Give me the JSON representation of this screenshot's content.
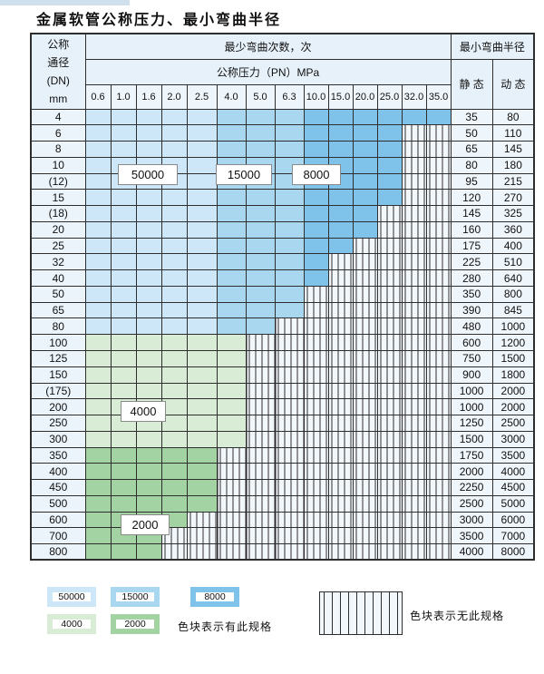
{
  "page": {
    "title": "金属软管公称压力、最小弯曲半径"
  },
  "table": {
    "header": {
      "dn": [
        "公称",
        "通径",
        "(DN)",
        "mm"
      ],
      "cycles": "最少弯曲次数，次",
      "pressure": "公称压力（PN）MPa",
      "radius": "最小弯曲半径",
      "static": "静 态",
      "dynamic": "动 态"
    },
    "pressure_columns": [
      "0.6",
      "1.0",
      "1.6",
      "2.0",
      "2.5",
      "4.0",
      "5.0",
      "6.3",
      "10.0",
      "15.0",
      "20.0",
      "25.0",
      "32.0",
      "35.0"
    ],
    "rows": [
      {
        "dn": "4",
        "static": "35",
        "dynamic": "80",
        "spec_through": 14,
        "zone": "blue"
      },
      {
        "dn": "6",
        "static": "50",
        "dynamic": "110",
        "spec_through": 12,
        "zone": "blue"
      },
      {
        "dn": "8",
        "static": "65",
        "dynamic": "145",
        "spec_through": 12,
        "zone": "blue"
      },
      {
        "dn": "10",
        "static": "80",
        "dynamic": "180",
        "spec_through": 12,
        "zone": "blue"
      },
      {
        "dn": "(12)",
        "static": "95",
        "dynamic": "215",
        "spec_through": 12,
        "zone": "blue"
      },
      {
        "dn": "15",
        "static": "120",
        "dynamic": "270",
        "spec_through": 12,
        "zone": "blue"
      },
      {
        "dn": "(18)",
        "static": "145",
        "dynamic": "325",
        "spec_through": 11,
        "zone": "blue"
      },
      {
        "dn": "20",
        "static": "160",
        "dynamic": "360",
        "spec_through": 11,
        "zone": "blue"
      },
      {
        "dn": "25",
        "static": "175",
        "dynamic": "400",
        "spec_through": 10,
        "zone": "blue"
      },
      {
        "dn": "32",
        "static": "225",
        "dynamic": "510",
        "spec_through": 9,
        "zone": "blue"
      },
      {
        "dn": "40",
        "static": "280",
        "dynamic": "640",
        "spec_through": 9,
        "zone": "blue"
      },
      {
        "dn": "50",
        "static": "350",
        "dynamic": "800",
        "spec_through": 8,
        "zone": "blue"
      },
      {
        "dn": "65",
        "static": "390",
        "dynamic": "845",
        "spec_through": 8,
        "zone": "blue"
      },
      {
        "dn": "80",
        "static": "480",
        "dynamic": "1000",
        "spec_through": 7,
        "zone": "blue"
      },
      {
        "dn": "100",
        "static": "600",
        "dynamic": "1200",
        "spec_through": 6,
        "zone": "green_light"
      },
      {
        "dn": "125",
        "static": "750",
        "dynamic": "1500",
        "spec_through": 6,
        "zone": "green_light"
      },
      {
        "dn": "150",
        "static": "900",
        "dynamic": "1800",
        "spec_through": 6,
        "zone": "green_light"
      },
      {
        "dn": "(175)",
        "static": "1000",
        "dynamic": "2000",
        "spec_through": 6,
        "zone": "green_light"
      },
      {
        "dn": "200",
        "static": "1000",
        "dynamic": "2000",
        "spec_through": 6,
        "zone": "green_light"
      },
      {
        "dn": "250",
        "static": "1250",
        "dynamic": "2500",
        "spec_through": 6,
        "zone": "green_light"
      },
      {
        "dn": "300",
        "static": "1500",
        "dynamic": "3000",
        "spec_through": 6,
        "zone": "green_light"
      },
      {
        "dn": "350",
        "static": "1750",
        "dynamic": "3500",
        "spec_through": 5,
        "zone": "green_mid"
      },
      {
        "dn": "400",
        "static": "2000",
        "dynamic": "4000",
        "spec_through": 5,
        "zone": "green_mid"
      },
      {
        "dn": "450",
        "static": "2250",
        "dynamic": "4500",
        "spec_through": 5,
        "zone": "green_mid"
      },
      {
        "dn": "500",
        "static": "2500",
        "dynamic": "5000",
        "spec_through": 5,
        "zone": "green_mid"
      },
      {
        "dn": "600",
        "static": "3000",
        "dynamic": "6000",
        "spec_through": 4,
        "zone": "green_mid"
      },
      {
        "dn": "700",
        "static": "3500",
        "dynamic": "7000",
        "spec_through": 3,
        "zone": "green_mid"
      },
      {
        "dn": "800",
        "static": "4000",
        "dynamic": "8000",
        "spec_through": 3,
        "zone": "green_mid"
      }
    ],
    "cycle_labels": [
      {
        "text": "50000",
        "zone": "blue_light"
      },
      {
        "text": "15000",
        "zone": "blue_mid"
      },
      {
        "text": "8000",
        "zone": "blue_dark"
      },
      {
        "text": "4000",
        "zone": "green_light"
      },
      {
        "text": "2000",
        "zone": "green_mid"
      }
    ]
  },
  "legend": {
    "items": [
      {
        "label": "50000",
        "color_key": "blue_light"
      },
      {
        "label": "15000",
        "color_key": "blue_mid"
      },
      {
        "label": "8000",
        "color_key": "blue_dark"
      },
      {
        "label": "4000",
        "color_key": "green_light"
      },
      {
        "label": "2000",
        "color_key": "green_mid"
      }
    ],
    "note_has": "色块表示有此规格",
    "note_none": "色块表示无此规格"
  },
  "colors": {
    "blue_light": "#cde7f8",
    "blue_mid": "#a9d7f0",
    "blue_dark": "#7fc3ea",
    "green_light": "#d8ecd6",
    "green_mid": "#a3d2a3",
    "header_bg": "#e7f1fa",
    "cell_bg": "#eef5fb",
    "hatch_bg": "#f2f7fc",
    "grid_line": "#2e2e2e"
  }
}
